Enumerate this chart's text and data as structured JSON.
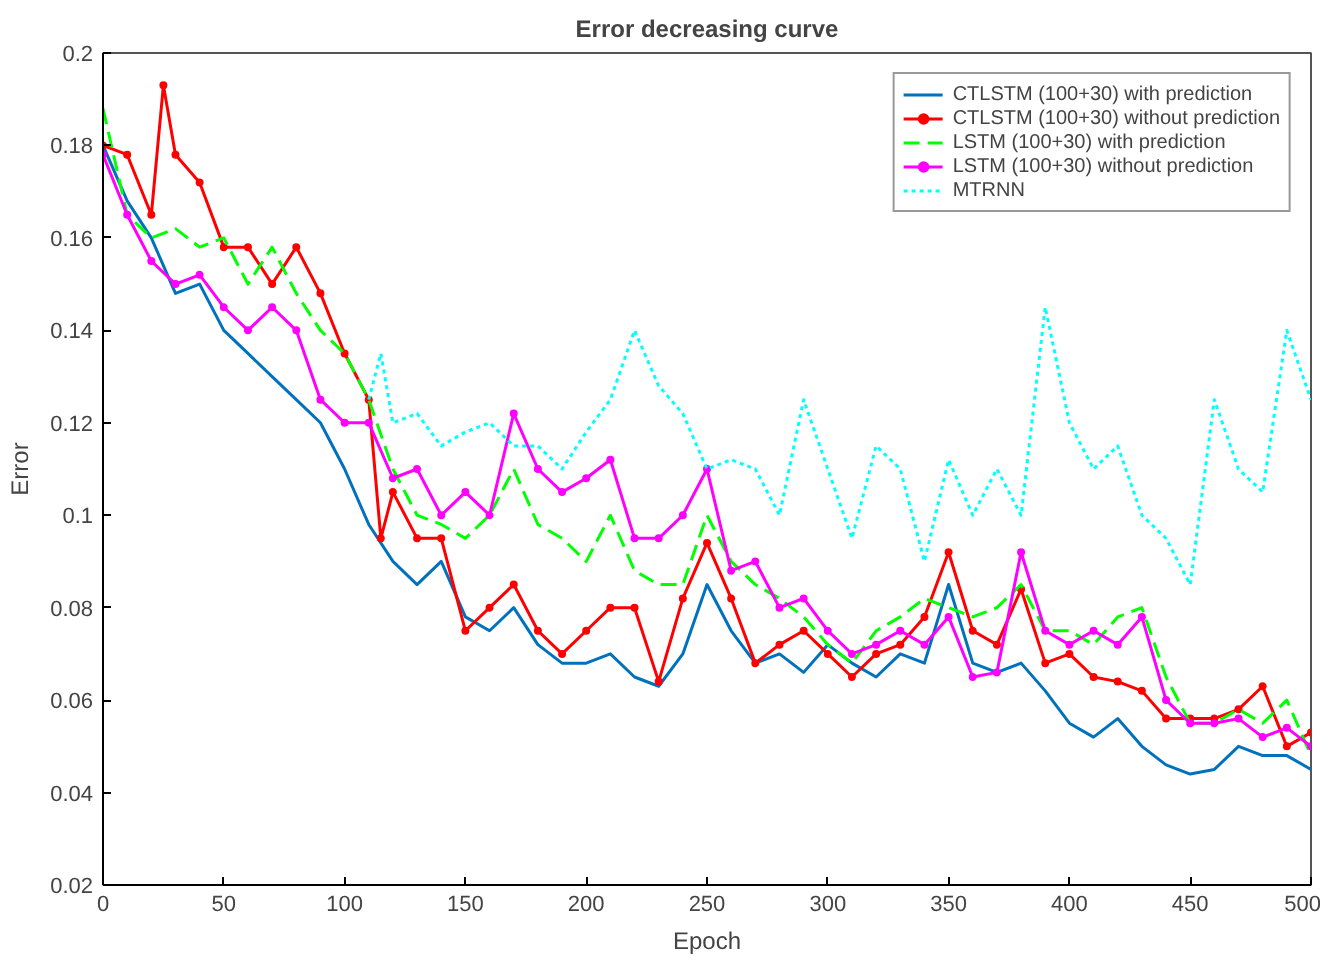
{
  "chart_data": {
    "type": "line",
    "title": "Error decreasing curve",
    "xlabel": "Epoch",
    "ylabel": "Error",
    "xlim": [
      0,
      500
    ],
    "ylim": [
      0.02,
      0.2
    ],
    "xticks": [
      0,
      50,
      100,
      150,
      200,
      250,
      300,
      350,
      400,
      450,
      500
    ],
    "yticks": [
      0.02,
      0.04,
      0.06,
      0.08,
      0.1,
      0.12,
      0.14,
      0.16,
      0.18,
      0.2
    ],
    "grid": false,
    "legend": "top right",
    "series": [
      {
        "name": "CTLSTM (100+30) with prediction",
        "color": "#0072bd",
        "line_style": "solid",
        "marker": "none",
        "x": [
          0,
          10,
          20,
          30,
          40,
          50,
          60,
          70,
          80,
          90,
          100,
          110,
          120,
          130,
          140,
          150,
          160,
          170,
          180,
          190,
          200,
          210,
          220,
          230,
          240,
          250,
          260,
          270,
          280,
          290,
          300,
          310,
          320,
          330,
          340,
          350,
          360,
          370,
          380,
          390,
          400,
          410,
          420,
          430,
          440,
          450,
          460,
          470,
          480,
          490,
          500
        ],
        "values": [
          0.18,
          0.168,
          0.16,
          0.148,
          0.15,
          0.14,
          0.135,
          0.13,
          0.125,
          0.12,
          0.11,
          0.098,
          0.09,
          0.085,
          0.09,
          0.078,
          0.075,
          0.08,
          0.072,
          0.068,
          0.068,
          0.07,
          0.065,
          0.063,
          0.07,
          0.085,
          0.075,
          0.068,
          0.07,
          0.066,
          0.072,
          0.068,
          0.065,
          0.07,
          0.068,
          0.085,
          0.068,
          0.066,
          0.068,
          0.062,
          0.055,
          0.052,
          0.056,
          0.05,
          0.046,
          0.044,
          0.045,
          0.05,
          0.048,
          0.048,
          0.045
        ]
      },
      {
        "name": "CTLSTM (100+30) without prediction",
        "color": "#ff0000",
        "line_style": "solid",
        "marker": "circle",
        "x": [
          0,
          10,
          20,
          25,
          30,
          40,
          50,
          60,
          70,
          80,
          90,
          100,
          110,
          115,
          120,
          130,
          140,
          150,
          160,
          170,
          180,
          190,
          200,
          210,
          220,
          230,
          240,
          250,
          260,
          270,
          280,
          290,
          300,
          310,
          320,
          330,
          340,
          350,
          360,
          370,
          380,
          390,
          400,
          410,
          420,
          430,
          440,
          450,
          460,
          470,
          480,
          490,
          500
        ],
        "values": [
          0.18,
          0.178,
          0.165,
          0.193,
          0.178,
          0.172,
          0.158,
          0.158,
          0.15,
          0.158,
          0.148,
          0.135,
          0.125,
          0.095,
          0.105,
          0.095,
          0.095,
          0.075,
          0.08,
          0.085,
          0.075,
          0.07,
          0.075,
          0.08,
          0.08,
          0.064,
          0.082,
          0.094,
          0.082,
          0.068,
          0.072,
          0.075,
          0.07,
          0.065,
          0.07,
          0.072,
          0.078,
          0.092,
          0.075,
          0.072,
          0.084,
          0.068,
          0.07,
          0.065,
          0.064,
          0.062,
          0.056,
          0.056,
          0.056,
          0.058,
          0.063,
          0.05,
          0.053
        ]
      },
      {
        "name": "LSTM (100+30) with prediction",
        "color": "#00ff00",
        "line_style": "dashed",
        "marker": "none",
        "x": [
          0,
          10,
          20,
          30,
          40,
          50,
          60,
          70,
          80,
          90,
          100,
          110,
          120,
          130,
          140,
          150,
          160,
          170,
          180,
          190,
          200,
          210,
          220,
          230,
          240,
          250,
          260,
          270,
          280,
          290,
          300,
          310,
          320,
          330,
          340,
          350,
          360,
          370,
          380,
          390,
          400,
          410,
          420,
          430,
          440,
          450,
          460,
          470,
          480,
          490,
          500
        ],
        "values": [
          0.188,
          0.165,
          0.16,
          0.162,
          0.158,
          0.16,
          0.15,
          0.158,
          0.148,
          0.14,
          0.135,
          0.125,
          0.11,
          0.1,
          0.098,
          0.095,
          0.1,
          0.11,
          0.098,
          0.095,
          0.09,
          0.1,
          0.088,
          0.085,
          0.085,
          0.1,
          0.09,
          0.085,
          0.082,
          0.078,
          0.072,
          0.068,
          0.075,
          0.078,
          0.082,
          0.08,
          0.078,
          0.08,
          0.085,
          0.075,
          0.075,
          0.072,
          0.078,
          0.08,
          0.065,
          0.055,
          0.055,
          0.058,
          0.055,
          0.06,
          0.048
        ]
      },
      {
        "name": "LSTM (100+30) without prediction",
        "color": "#ff00ff",
        "line_style": "solid",
        "marker": "circle",
        "x": [
          0,
          10,
          20,
          30,
          40,
          50,
          60,
          70,
          80,
          90,
          100,
          110,
          120,
          130,
          140,
          150,
          160,
          170,
          180,
          190,
          200,
          210,
          220,
          230,
          240,
          250,
          260,
          270,
          280,
          290,
          300,
          310,
          320,
          330,
          340,
          350,
          360,
          370,
          380,
          390,
          400,
          410,
          420,
          430,
          440,
          450,
          460,
          470,
          480,
          490,
          500
        ],
        "values": [
          0.178,
          0.165,
          0.155,
          0.15,
          0.152,
          0.145,
          0.14,
          0.145,
          0.14,
          0.125,
          0.12,
          0.12,
          0.108,
          0.11,
          0.1,
          0.105,
          0.1,
          0.122,
          0.11,
          0.105,
          0.108,
          0.112,
          0.095,
          0.095,
          0.1,
          0.11,
          0.088,
          0.09,
          0.08,
          0.082,
          0.075,
          0.07,
          0.072,
          0.075,
          0.072,
          0.078,
          0.065,
          0.066,
          0.092,
          0.075,
          0.072,
          0.075,
          0.072,
          0.078,
          0.06,
          0.055,
          0.055,
          0.056,
          0.052,
          0.054,
          0.05
        ]
      },
      {
        "name": "MTRNN",
        "color": "#00ffff",
        "line_style": "dotted",
        "marker": "none",
        "x": [
          110,
          115,
          120,
          130,
          140,
          150,
          160,
          170,
          180,
          190,
          200,
          210,
          220,
          230,
          240,
          250,
          260,
          270,
          280,
          290,
          300,
          310,
          320,
          330,
          340,
          350,
          360,
          370,
          380,
          390,
          400,
          410,
          420,
          430,
          440,
          450,
          460,
          470,
          480,
          490,
          500
        ],
        "values": [
          0.125,
          0.135,
          0.12,
          0.122,
          0.115,
          0.118,
          0.12,
          0.115,
          0.115,
          0.11,
          0.118,
          0.125,
          0.14,
          0.128,
          0.122,
          0.11,
          0.112,
          0.11,
          0.1,
          0.125,
          0.11,
          0.095,
          0.115,
          0.11,
          0.09,
          0.112,
          0.1,
          0.11,
          0.1,
          0.145,
          0.12,
          0.11,
          0.115,
          0.1,
          0.095,
          0.085,
          0.125,
          0.11,
          0.105,
          0.14,
          0.125
        ]
      }
    ]
  }
}
